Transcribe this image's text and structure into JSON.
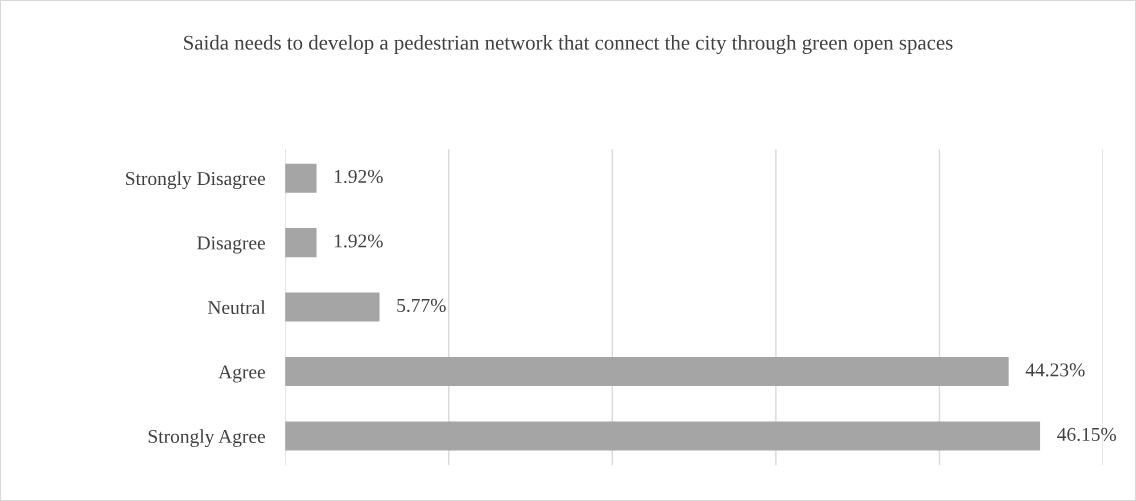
{
  "chart_data": {
    "type": "bar",
    "orientation": "horizontal",
    "title": "Saida needs to develop a pedestrian network that connect the city through green open spaces",
    "categories": [
      "Strongly Disagree",
      "Disagree",
      "Neutral",
      "Agree",
      "Strongly Agree"
    ],
    "values": [
      1.92,
      1.92,
      5.77,
      44.23,
      46.15
    ],
    "value_labels": [
      "1.92%",
      "1.92%",
      "5.77%",
      "44.23%",
      "46.15%"
    ],
    "color": "#a5a5a5",
    "xlim": [
      0,
      50
    ],
    "xticks": [
      {
        "value": 0,
        "label": null
      },
      {
        "value": 10,
        "label": null
      },
      {
        "value": 20,
        "label": null
      },
      {
        "value": 30,
        "label": null
      },
      {
        "value": 40,
        "label": null
      },
      {
        "value": 50,
        "label": null
      }
    ],
    "grid": "x",
    "tick_labels": "y"
  }
}
